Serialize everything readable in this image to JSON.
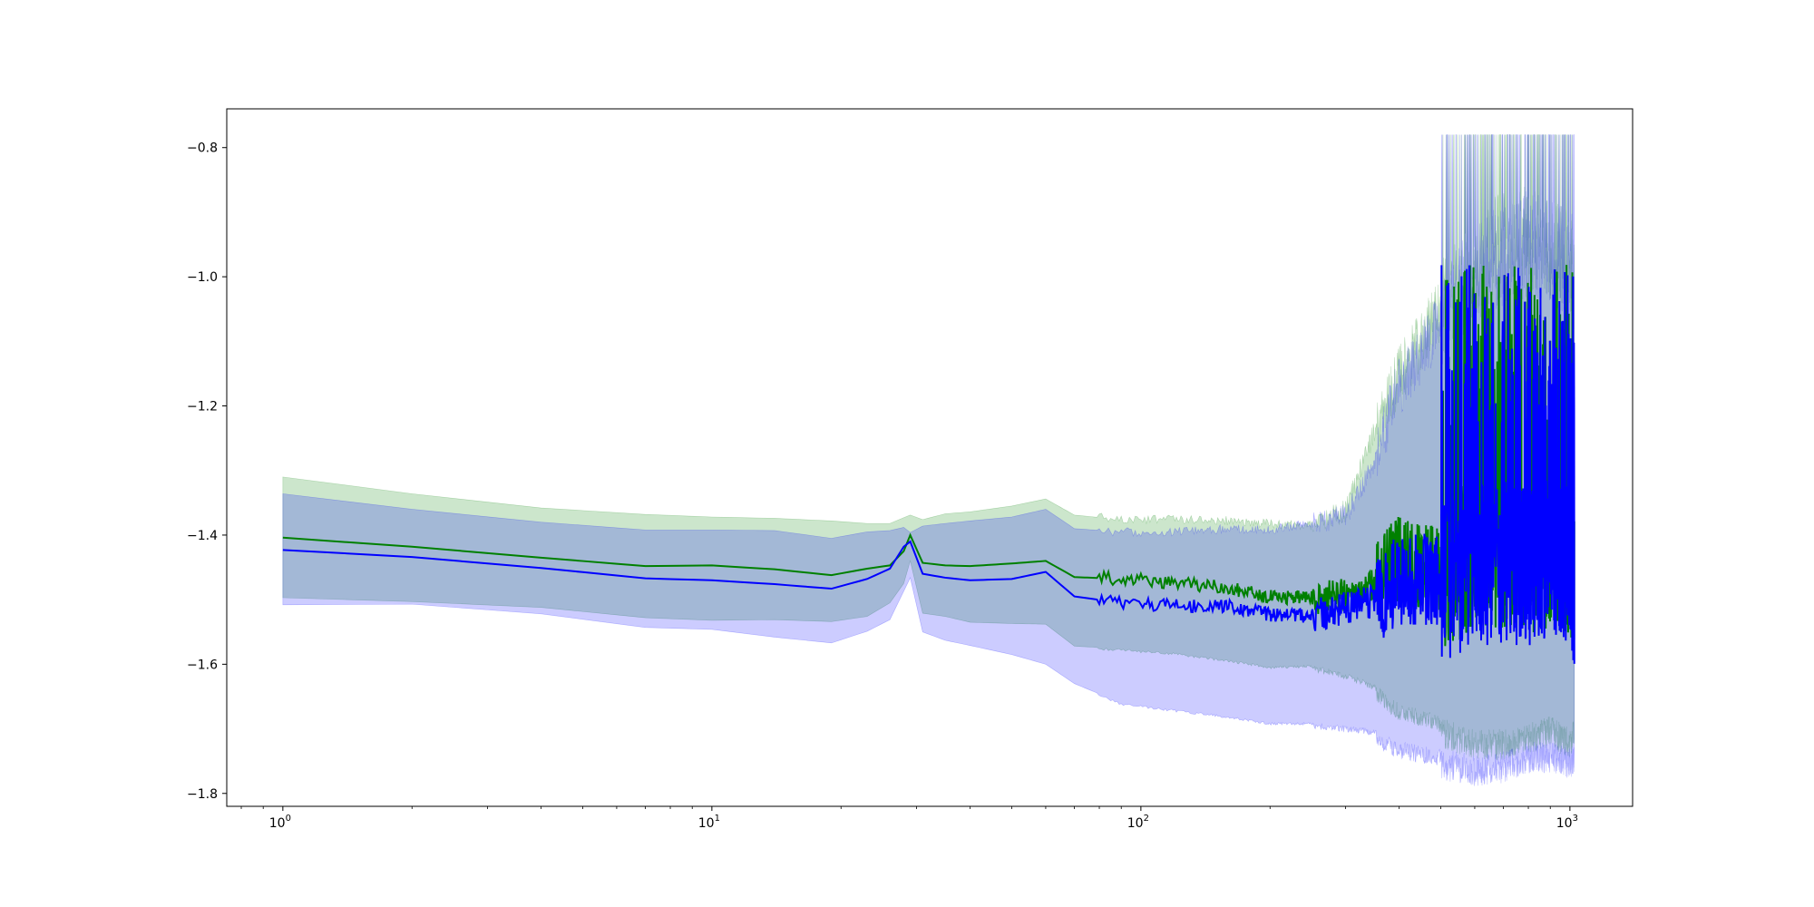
{
  "chart_data": {
    "type": "line",
    "title": "",
    "xlabel": "",
    "ylabel": "",
    "xscale": "log",
    "xlim": [
      0.74,
      1400
    ],
    "ylim": [
      -1.82,
      -0.74
    ],
    "grid": false,
    "legend": "none",
    "x_ticks": [
      {
        "value": 1,
        "base": "10",
        "exp": "0"
      },
      {
        "value": 10,
        "base": "10",
        "exp": "1"
      },
      {
        "value": 100,
        "base": "10",
        "exp": "2"
      },
      {
        "value": 1000,
        "base": "10",
        "exp": "3"
      }
    ],
    "y_ticks": [
      {
        "value": -1.8,
        "label": "−1.8"
      },
      {
        "value": -1.6,
        "label": "−1.6"
      },
      {
        "value": -1.4,
        "label": "−1.4"
      },
      {
        "value": -1.2,
        "label": "−1.2"
      },
      {
        "value": -1.0,
        "label": "−1.0"
      },
      {
        "value": -0.8,
        "label": "−0.8"
      }
    ],
    "series": [
      {
        "color": "#008000",
        "band_color": "#008000",
        "x": [
          1,
          2,
          4,
          7,
          10,
          14,
          19,
          23,
          26,
          28,
          29,
          31,
          35,
          40,
          50,
          60,
          70,
          90,
          120,
          160,
          200,
          250,
          300,
          350,
          400,
          500,
          600,
          700,
          800,
          900,
          1000,
          1024
        ],
        "y": [
          -1.404,
          -1.418,
          -1.435,
          -1.448,
          -1.447,
          -1.453,
          -1.462,
          -1.452,
          -1.447,
          -1.425,
          -1.4,
          -1.443,
          -1.447,
          -1.448,
          -1.444,
          -1.44,
          -1.465,
          -1.468,
          -1.475,
          -1.482,
          -1.496,
          -1.497,
          -1.491,
          -1.48,
          -1.44,
          -1.45,
          -1.43,
          -1.42,
          -1.43,
          -1.42,
          -1.44,
          -1.47
        ],
        "upper": [
          -1.31,
          -1.336,
          -1.358,
          -1.368,
          -1.372,
          -1.374,
          -1.378,
          -1.382,
          -1.382,
          -1.373,
          -1.369,
          -1.376,
          -1.367,
          -1.364,
          -1.355,
          -1.344,
          -1.369,
          -1.376,
          -1.376,
          -1.378,
          -1.382,
          -1.385,
          -1.362,
          -1.24,
          -1.15,
          -1.05,
          -0.98,
          -0.95,
          -0.94,
          -0.96,
          -0.98,
          -1.0
        ],
        "lower": [
          -1.497,
          -1.503,
          -1.512,
          -1.528,
          -1.532,
          -1.531,
          -1.534,
          -1.526,
          -1.505,
          -1.475,
          -1.44,
          -1.521,
          -1.526,
          -1.535,
          -1.537,
          -1.538,
          -1.572,
          -1.576,
          -1.582,
          -1.593,
          -1.603,
          -1.601,
          -1.613,
          -1.63,
          -1.66,
          -1.68,
          -1.7,
          -1.7,
          -1.69,
          -1.68,
          -1.7,
          -1.68
        ]
      },
      {
        "color": "#0000ff",
        "band_color": "#0000ff",
        "x": [
          1,
          2,
          4,
          7,
          10,
          14,
          19,
          23,
          26,
          28,
          29,
          31,
          35,
          40,
          50,
          60,
          70,
          90,
          120,
          160,
          200,
          250,
          300,
          350,
          400,
          500,
          600,
          700,
          800,
          900,
          1000,
          1024
        ],
        "y": [
          -1.423,
          -1.434,
          -1.451,
          -1.467,
          -1.47,
          -1.476,
          -1.483,
          -1.468,
          -1.452,
          -1.418,
          -1.41,
          -1.46,
          -1.466,
          -1.47,
          -1.468,
          -1.457,
          -1.495,
          -1.505,
          -1.51,
          -1.51,
          -1.523,
          -1.525,
          -1.515,
          -1.5,
          -1.47,
          -1.47,
          -1.45,
          -1.44,
          -1.45,
          -1.43,
          -1.45,
          -1.48
        ],
        "upper": [
          -1.336,
          -1.36,
          -1.38,
          -1.392,
          -1.392,
          -1.393,
          -1.405,
          -1.395,
          -1.393,
          -1.388,
          -1.396,
          -1.386,
          -1.382,
          -1.378,
          -1.372,
          -1.36,
          -1.39,
          -1.395,
          -1.395,
          -1.39,
          -1.392,
          -1.382,
          -1.37,
          -1.29,
          -1.17,
          -1.07,
          -1.0,
          -0.96,
          -0.95,
          -0.96,
          -0.98,
          -0.99
        ],
        "lower": [
          -1.508,
          -1.507,
          -1.522,
          -1.543,
          -1.546,
          -1.558,
          -1.567,
          -1.549,
          -1.531,
          -1.487,
          -1.466,
          -1.55,
          -1.563,
          -1.571,
          -1.585,
          -1.6,
          -1.63,
          -1.66,
          -1.67,
          -1.68,
          -1.69,
          -1.69,
          -1.695,
          -1.7,
          -1.72,
          -1.73,
          -1.74,
          -1.735,
          -1.72,
          -1.72,
          -1.73,
          -1.72
        ]
      }
    ]
  }
}
